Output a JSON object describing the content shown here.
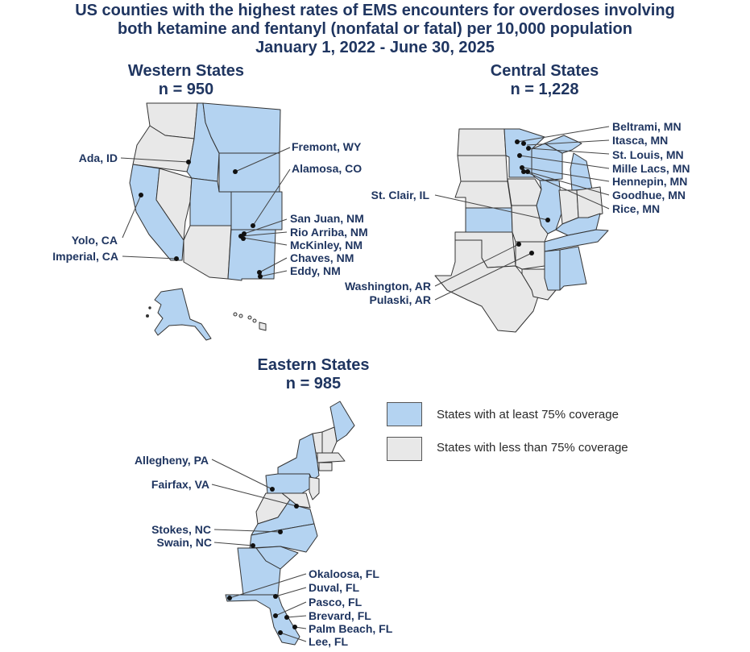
{
  "title": {
    "line1": "US counties with the highest rates of EMS encounters for overdoses involving",
    "line2": "both ketamine and fentanyl (nonfatal or fatal) per 10,000 population",
    "line3": "January 1, 2022 - June 30, 2025"
  },
  "colors": {
    "covered": "#b4d3f1",
    "not_covered": "#e8e8e8",
    "border": "#333333",
    "text": "#1f3560"
  },
  "regions": {
    "western": {
      "name": "Western States",
      "n": "n = 950"
    },
    "central": {
      "name": "Central States",
      "n": "n = 1,228"
    },
    "eastern": {
      "name": "Eastern States",
      "n": "n = 985"
    }
  },
  "legend": {
    "covered": "States with at least 75% coverage",
    "not_covered": "States with less than 75% coverage"
  },
  "counties": {
    "western": [
      "Ada, ID",
      "Fremont, WY",
      "Alamosa, CO",
      "San Juan, NM",
      "Rio Arriba, NM",
      "McKinley, NM",
      "Chaves, NM",
      "Eddy, NM",
      "Yolo, CA",
      "Imperial, CA"
    ],
    "central": [
      "Beltrami, MN",
      "Itasca, MN",
      "St. Louis, MN",
      "Mille Lacs, MN",
      "Hennepin, MN",
      "Goodhue, MN",
      "Rice, MN",
      "St. Clair, IL",
      "Washington, AR",
      "Pulaski, AR"
    ],
    "eastern": [
      "Allegheny, PA",
      "Fairfax, VA",
      "Stokes, NC",
      "Swain, NC",
      "Okaloosa, FL",
      "Duval, FL",
      "Pasco, FL",
      "Brevard, FL",
      "Palm Beach, FL",
      "Lee, FL"
    ]
  }
}
